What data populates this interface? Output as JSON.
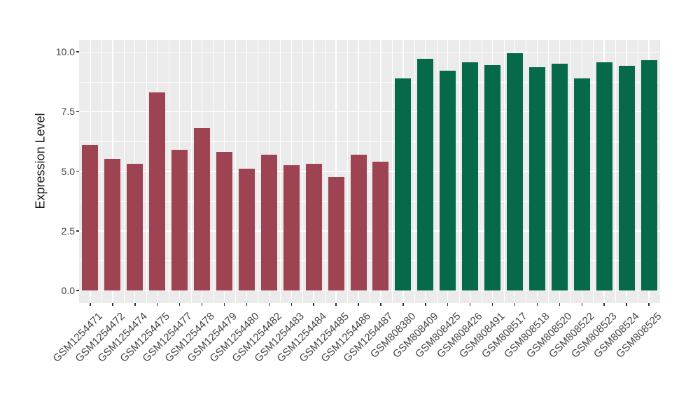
{
  "chart_data": {
    "type": "bar",
    "title": "",
    "xlabel": "",
    "ylabel": "Expression Level",
    "ylim": [
      0,
      10.5
    ],
    "yticks": [
      0,
      2.5,
      5,
      7.5,
      10
    ],
    "ytick_labels": [
      "0.0",
      "2.5",
      "5.0",
      "7.5",
      "10.0"
    ],
    "yticks_minor": [
      1.25,
      3.75,
      6.25,
      8.75
    ],
    "grid": true,
    "legend": false,
    "categories": [
      "GSM1254471",
      "GSM1254472",
      "GSM1254474",
      "GSM1254475",
      "GSM1254477",
      "GSM1254478",
      "GSM1254479",
      "GSM1254480",
      "GSM1254482",
      "GSM1254483",
      "GSM1254484",
      "GSM1254485",
      "GSM1254486",
      "GSM1254487",
      "GSM808380",
      "GSM808409",
      "GSM808425",
      "GSM808426",
      "GSM808491",
      "GSM808517",
      "GSM808518",
      "GSM808520",
      "GSM808522",
      "GSM808523",
      "GSM808524",
      "GSM808525"
    ],
    "values": [
      6.1,
      5.5,
      5.3,
      8.3,
      5.9,
      6.8,
      5.8,
      5.1,
      5.7,
      5.25,
      5.3,
      4.75,
      5.7,
      5.4,
      8.9,
      9.7,
      9.2,
      9.55,
      9.45,
      9.95,
      9.35,
      9.5,
      8.9,
      9.55,
      9.4,
      9.65
    ],
    "bar_colors": [
      "#9E4352",
      "#9E4352",
      "#9E4352",
      "#9E4352",
      "#9E4352",
      "#9E4352",
      "#9E4352",
      "#9E4352",
      "#9E4352",
      "#9E4352",
      "#9E4352",
      "#9E4352",
      "#9E4352",
      "#9E4352",
      "#05694A",
      "#05694A",
      "#05694A",
      "#05694A",
      "#05694A",
      "#05694A",
      "#05694A",
      "#05694A",
      "#05694A",
      "#05694A",
      "#05694A",
      "#05694A"
    ]
  },
  "style": {
    "panel_background": "#EBEBEB",
    "grid_color": "#FFFFFF",
    "tick_mark_color": "#333333",
    "tick_label_color": "#444444",
    "axis_title_color": "#1A1A1A",
    "figure_background": "#FFFFFF"
  }
}
